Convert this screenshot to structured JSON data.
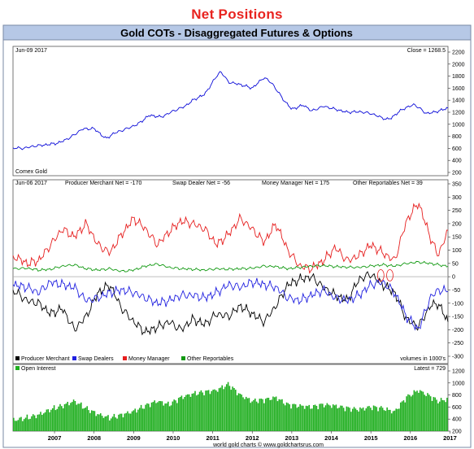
{
  "page_title": "Net Positions",
  "chart_header": "Gold COTs - Disaggregated Futures & Options",
  "footer": "world gold charts © www.goldchartsrus.com",
  "x_ticks": [
    "2007",
    "2008",
    "2009",
    "2010",
    "2011",
    "2012",
    "2013",
    "2014",
    "2015",
    "2016",
    "2017"
  ],
  "colors": {
    "price": "#0a0ad8",
    "producer": "#000000",
    "swap": "#2020e0",
    "money": "#e61e1e",
    "other": "#119911",
    "oi": "#1fae1f",
    "header_bg": "#b6c8e6",
    "zero_line": "#aaaaaa"
  },
  "panels": {
    "price": {
      "date_label": "Jun-09  2017",
      "close_label": "Close = 1268.5",
      "source_label": "Comex Gold"
    },
    "cot": {
      "date_label": "Jun-06  2017",
      "producer_net_label": "Producer Merchant Net = -170",
      "swap_net_label": "Swap Dealer Net = -56",
      "money_net_label": "Money Manager Net = 175",
      "other_net_label": "Other Reportables Net = 39",
      "legend": [
        {
          "name": "Producer Merchant",
          "color": "#000000"
        },
        {
          "name": "Swap Dealers",
          "color": "#2020e0"
        },
        {
          "name": "Money Manager",
          "color": "#e61e1e"
        },
        {
          "name": "Other Reportables",
          "color": "#119911"
        }
      ],
      "volume_note": "volumes in 1000's"
    },
    "oi": {
      "legend_label": "Open Interest",
      "latest_label": "Latest = 729"
    }
  },
  "chart_data": [
    {
      "type": "line",
      "title": "Comex Gold",
      "ylim": [
        200,
        2200
      ],
      "yticks": [
        200,
        400,
        600,
        800,
        1000,
        1200,
        1400,
        1600,
        1800,
        2000,
        2200
      ],
      "x": [
        2006.45,
        2006.7,
        2007.0,
        2007.3,
        2007.6,
        2007.9,
        2008.2,
        2008.5,
        2008.8,
        2009.0,
        2009.3,
        2009.6,
        2009.9,
        2010.2,
        2010.5,
        2010.8,
        2011.0,
        2011.3,
        2011.6,
        2011.7,
        2011.9,
        2012.2,
        2012.5,
        2012.8,
        2013.0,
        2013.3,
        2013.5,
        2013.8,
        2014.0,
        2014.3,
        2014.6,
        2014.9,
        2015.2,
        2015.5,
        2015.9,
        2016.0,
        2016.3,
        2016.6,
        2016.9,
        2017.1,
        2017.45
      ],
      "series": [
        {
          "values": [
            610,
            600,
            640,
            660,
            690,
            780,
            920,
            930,
            760,
            850,
            920,
            1000,
            1150,
            1120,
            1220,
            1300,
            1400,
            1500,
            1800,
            1880,
            1700,
            1660,
            1600,
            1780,
            1680,
            1400,
            1250,
            1320,
            1220,
            1300,
            1250,
            1200,
            1210,
            1180,
            1080,
            1100,
            1250,
            1330,
            1180,
            1200,
            1268.5
          ]
        }
      ]
    },
    {
      "type": "line",
      "ylim": [
        -300,
        350
      ],
      "yticks": [
        -300,
        -250,
        -200,
        -150,
        -100,
        -50,
        0,
        50,
        100,
        150,
        200,
        250,
        300,
        350
      ],
      "x": [
        2006.45,
        2006.8,
        2007.1,
        2007.4,
        2007.7,
        2008.0,
        2008.3,
        2008.6,
        2008.9,
        2009.2,
        2009.5,
        2009.8,
        2010.1,
        2010.4,
        2010.7,
        2011.0,
        2011.3,
        2011.6,
        2011.9,
        2012.2,
        2012.5,
        2012.8,
        2013.1,
        2013.4,
        2013.7,
        2014.0,
        2014.3,
        2014.6,
        2014.9,
        2015.2,
        2015.5,
        2015.8,
        2016.1,
        2016.4,
        2016.7,
        2017.0,
        2017.2,
        2017.45
      ],
      "series": [
        {
          "name": "Producer Merchant",
          "values": [
            -50,
            -90,
            -100,
            -140,
            -120,
            -200,
            -150,
            -60,
            -30,
            -120,
            -170,
            -210,
            -190,
            -170,
            -200,
            -160,
            -180,
            -140,
            -150,
            -110,
            -140,
            -170,
            -110,
            -30,
            -10,
            0,
            -40,
            -70,
            -90,
            -10,
            10,
            -30,
            -60,
            -160,
            -190,
            -110,
            -100,
            -170
          ]
        },
        {
          "name": "Swap Dealers",
          "values": [
            -30,
            -40,
            -60,
            -20,
            -30,
            -40,
            -90,
            -80,
            -60,
            -50,
            -60,
            -80,
            -100,
            -90,
            -70,
            -70,
            -80,
            -60,
            -30,
            -40,
            -20,
            -30,
            -40,
            -80,
            -90,
            -70,
            -50,
            -80,
            -90,
            -70,
            -30,
            -20,
            -60,
            -150,
            -200,
            -80,
            -50,
            -56
          ]
        },
        {
          "name": "Money Manager",
          "values": [
            80,
            50,
            60,
            120,
            180,
            150,
            200,
            120,
            90,
            160,
            220,
            180,
            120,
            170,
            210,
            200,
            180,
            120,
            160,
            220,
            180,
            130,
            200,
            100,
            40,
            30,
            60,
            110,
            60,
            80,
            120,
            90,
            60,
            210,
            280,
            150,
            80,
            175
          ]
        },
        {
          "name": "Other Reportables",
          "values": [
            30,
            32,
            25,
            28,
            40,
            45,
            30,
            25,
            30,
            20,
            25,
            40,
            48,
            35,
            30,
            28,
            25,
            30,
            28,
            30,
            32,
            40,
            38,
            30,
            35,
            40,
            42,
            38,
            36,
            35,
            40,
            45,
            40,
            50,
            55,
            50,
            45,
            39
          ]
        }
      ]
    },
    {
      "type": "bar",
      "title": "Open Interest",
      "ylim": [
        200,
        1200
      ],
      "yticks": [
        200,
        400,
        600,
        800,
        1000,
        1200
      ],
      "x": [
        2006.45,
        2006.8,
        2007.1,
        2007.4,
        2007.7,
        2008.0,
        2008.3,
        2008.6,
        2008.9,
        2009.2,
        2009.5,
        2009.8,
        2010.1,
        2010.4,
        2010.7,
        2011.0,
        2011.3,
        2011.6,
        2011.9,
        2012.2,
        2012.5,
        2012.8,
        2013.1,
        2013.4,
        2013.7,
        2014.0,
        2014.3,
        2014.6,
        2014.9,
        2015.2,
        2015.5,
        2015.8,
        2016.1,
        2016.4,
        2016.7,
        2017.0,
        2017.2,
        2017.45
      ],
      "series": [
        {
          "name": "Open Interest",
          "values": [
            380,
            420,
            470,
            560,
            620,
            700,
            580,
            480,
            420,
            470,
            530,
            620,
            700,
            640,
            760,
            820,
            850,
            880,
            980,
            800,
            700,
            720,
            760,
            640,
            620,
            600,
            640,
            620,
            580,
            560,
            600,
            580,
            520,
            760,
            880,
            780,
            700,
            729
          ]
        }
      ]
    }
  ]
}
